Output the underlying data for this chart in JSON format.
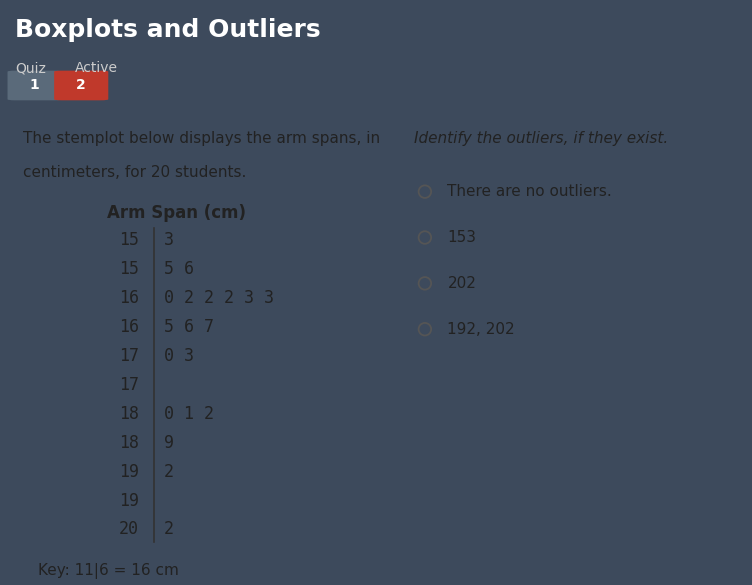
{
  "title": "Boxplots and Outliers",
  "subtitle_left": "Quiz",
  "subtitle_right": "Active",
  "header_bg": "#3d4a5c",
  "body_bg": "#e8e8e8",
  "button1_color": "#5a6a7a",
  "button2_color": "#c0392b",
  "left_text_line1": "The stemplot below displays the arm spans, in",
  "left_text_line2": "centimeters, for 20 students.",
  "stemplot_title": "Arm Span (cm)",
  "stems": [
    {
      "stem": "15",
      "leaf": "3"
    },
    {
      "stem": "15",
      "leaf": "5 6"
    },
    {
      "stem": "16",
      "leaf": "0 2 2 2 3 3"
    },
    {
      "stem": "16",
      "leaf": "5 6 7"
    },
    {
      "stem": "17",
      "leaf": "0 3"
    },
    {
      "stem": "17",
      "leaf": ""
    },
    {
      "stem": "18",
      "leaf": "0 1 2"
    },
    {
      "stem": "18",
      "leaf": "9"
    },
    {
      "stem": "19",
      "leaf": "2"
    },
    {
      "stem": "19",
      "leaf": ""
    },
    {
      "stem": "20",
      "leaf": "2"
    }
  ],
  "key_text": "Key: 11|6 = 16 cm",
  "right_header": "Identify the outliers, if they exist.",
  "options": [
    {
      "text": "There are no outliers."
    },
    {
      "text": "153"
    },
    {
      "text": "202"
    },
    {
      "text": "192, 202"
    }
  ],
  "title_fontsize": 18,
  "body_fontsize": 11,
  "stem_fontsize": 12
}
